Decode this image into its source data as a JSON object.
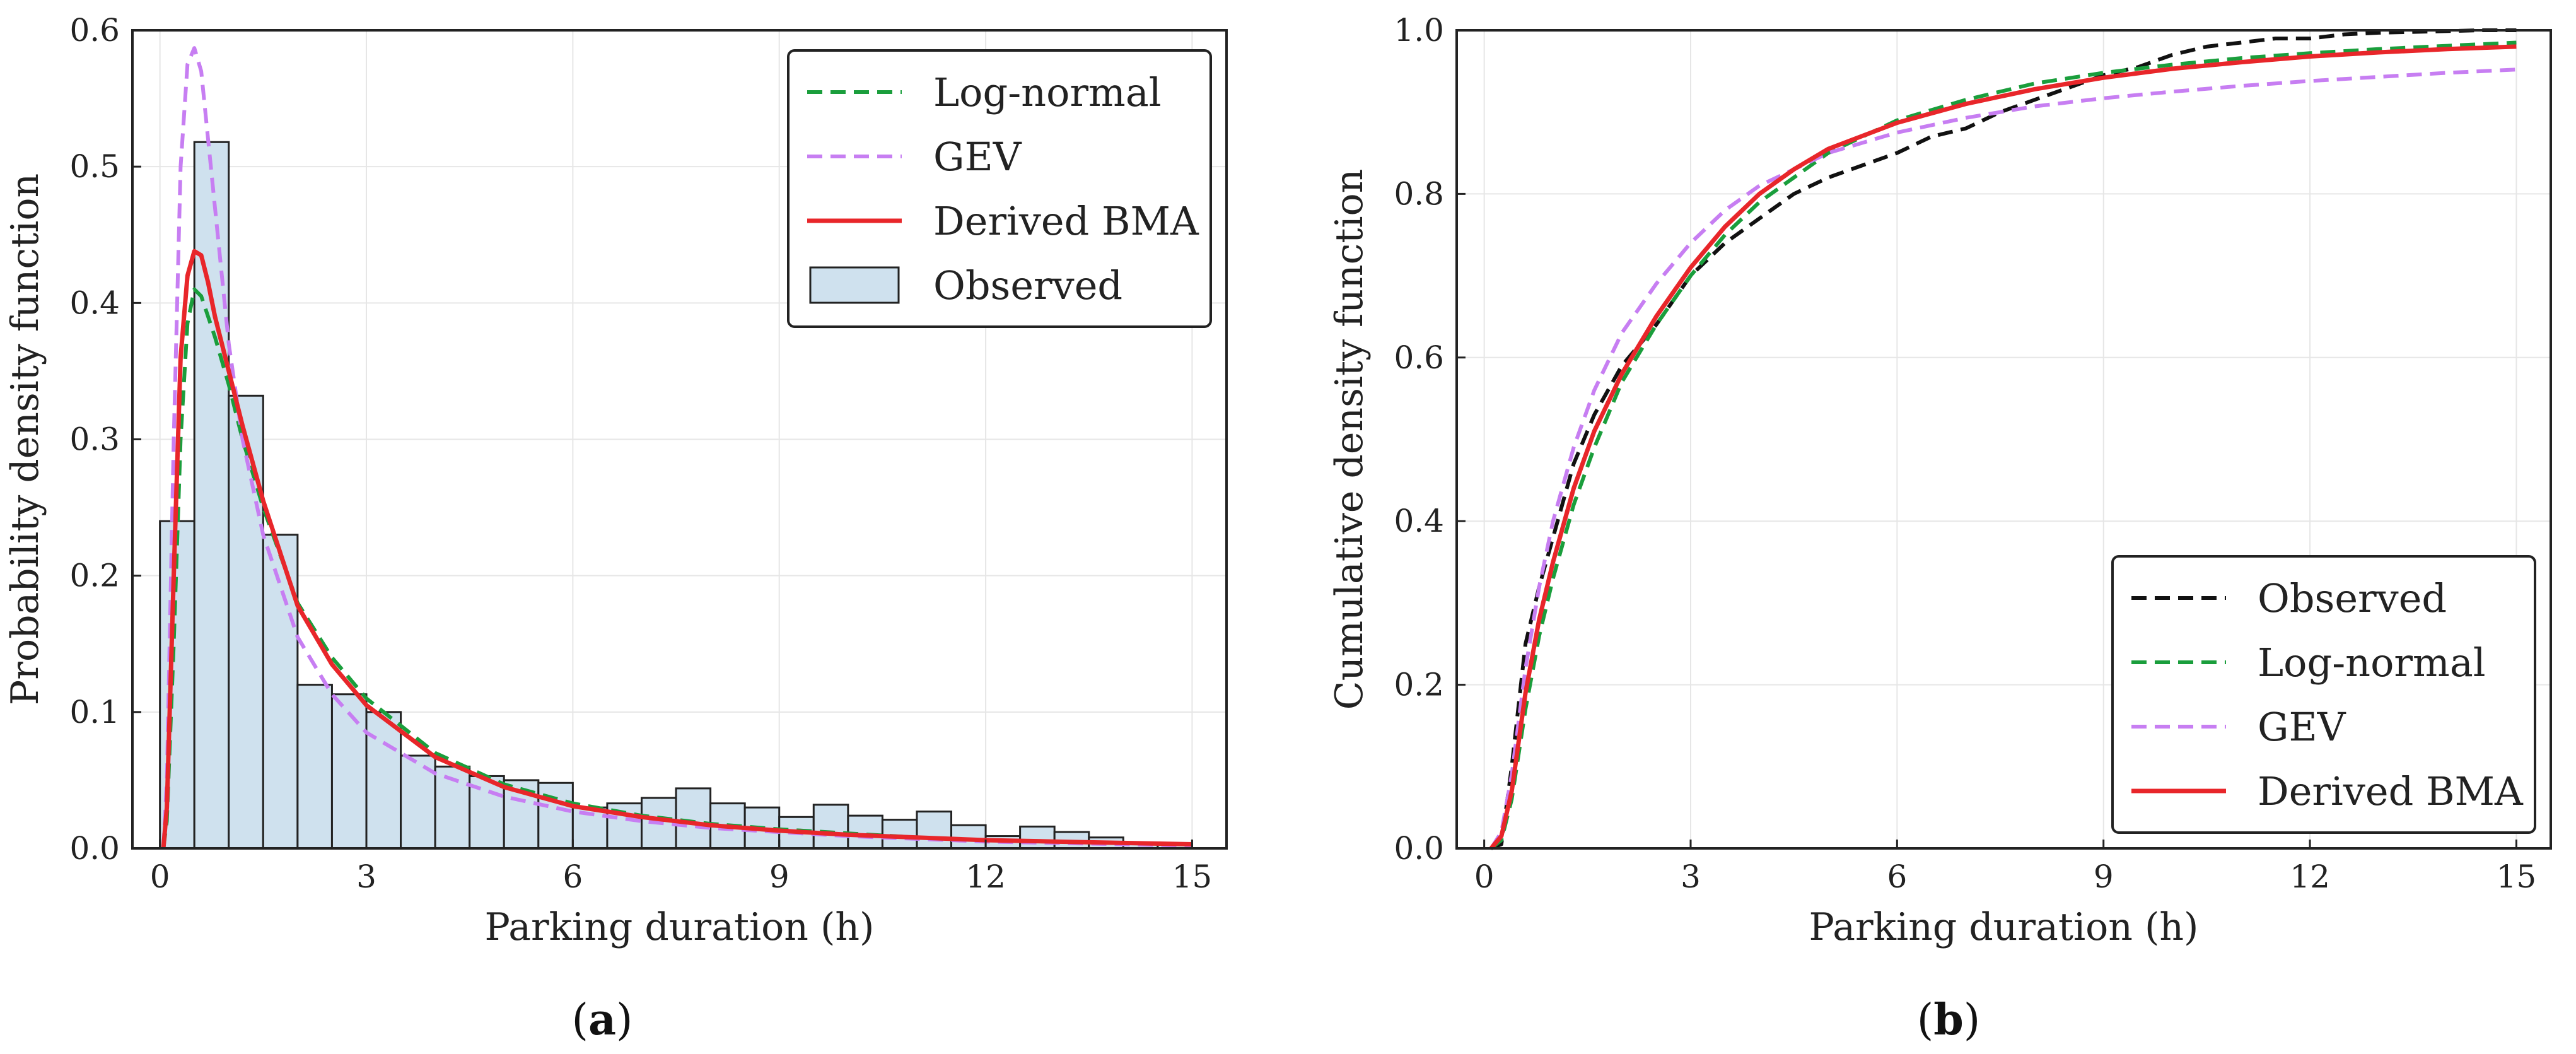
{
  "chart_data": [
    {
      "type": "histogram+line",
      "panel_label": "a",
      "xlabel": "Parking duration (h)",
      "ylabel": "Probability density function",
      "xlim": [
        -0.4,
        15.5
      ],
      "ylim": [
        0,
        0.6
      ],
      "xticks": [
        0,
        3,
        6,
        9,
        12,
        15
      ],
      "yticks": [
        0.0,
        0.1,
        0.2,
        0.3,
        0.4,
        0.5,
        0.6
      ],
      "grid": true,
      "legend_position": "top-right",
      "histogram": {
        "name": "Observed",
        "bin_width": 0.5,
        "bin_start": 0,
        "values": [
          0.24,
          0.518,
          0.332,
          0.23,
          0.12,
          0.113,
          0.1,
          0.068,
          0.06,
          0.053,
          0.05,
          0.048,
          0.03,
          0.033,
          0.037,
          0.044,
          0.033,
          0.03,
          0.023,
          0.032,
          0.024,
          0.021,
          0.027,
          0.017,
          0.009,
          0.016,
          0.012,
          0.008,
          0.004,
          0.003
        ],
        "fill": "#cfe1ee",
        "stroke": "#222222"
      },
      "series": [
        {
          "name": "Log-normal",
          "style": "dashed",
          "color": "#1a9e3c",
          "x": [
            0.05,
            0.1,
            0.2,
            0.3,
            0.4,
            0.5,
            0.6,
            0.7,
            0.8,
            1.0,
            1.2,
            1.5,
            2.0,
            2.5,
            3.0,
            4.0,
            5.0,
            6.0,
            7.0,
            8.0,
            9.0,
            10.0,
            11.0,
            12.0,
            13.0,
            14.0,
            15.0
          ],
          "y": [
            0.0,
            0.02,
            0.15,
            0.3,
            0.385,
            0.41,
            0.405,
            0.39,
            0.375,
            0.34,
            0.3,
            0.25,
            0.18,
            0.14,
            0.11,
            0.07,
            0.047,
            0.033,
            0.024,
            0.018,
            0.014,
            0.011,
            0.008,
            0.006,
            0.005,
            0.004,
            0.003
          ]
        },
        {
          "name": "GEV",
          "style": "dashed",
          "color": "#c77ef2",
          "x": [
            0.05,
            0.1,
            0.2,
            0.3,
            0.4,
            0.5,
            0.6,
            0.7,
            0.8,
            1.0,
            1.2,
            1.5,
            2.0,
            2.5,
            3.0,
            4.0,
            5.0,
            6.0,
            7.0,
            8.0,
            9.0,
            10.0,
            11.0,
            12.0,
            13.0,
            14.0,
            15.0
          ],
          "y": [
            0.0,
            0.05,
            0.3,
            0.5,
            0.575,
            0.587,
            0.57,
            0.52,
            0.47,
            0.37,
            0.3,
            0.23,
            0.155,
            0.113,
            0.085,
            0.055,
            0.038,
            0.027,
            0.02,
            0.015,
            0.012,
            0.009,
            0.007,
            0.005,
            0.004,
            0.003,
            0.002
          ]
        },
        {
          "name": "Derived BMA",
          "style": "solid",
          "color": "#e8262a",
          "x": [
            0.05,
            0.1,
            0.2,
            0.3,
            0.4,
            0.5,
            0.6,
            0.7,
            0.8,
            1.0,
            1.2,
            1.5,
            2.0,
            2.5,
            3.0,
            4.0,
            5.0,
            6.0,
            7.0,
            8.0,
            9.0,
            10.0,
            11.0,
            12.0,
            13.0,
            14.0,
            15.0
          ],
          "y": [
            0.0,
            0.03,
            0.2,
            0.36,
            0.42,
            0.438,
            0.435,
            0.415,
            0.39,
            0.35,
            0.31,
            0.255,
            0.178,
            0.135,
            0.105,
            0.067,
            0.045,
            0.031,
            0.023,
            0.017,
            0.013,
            0.01,
            0.008,
            0.006,
            0.005,
            0.004,
            0.003
          ]
        }
      ],
      "legend_order": [
        "Log-normal",
        "GEV",
        "Derived BMA",
        "Observed"
      ]
    },
    {
      "type": "line",
      "panel_label": "b",
      "xlabel": "Parking duration (h)",
      "ylabel": "Cumulative density function",
      "xlim": [
        -0.4,
        15.5
      ],
      "ylim": [
        0,
        1.0
      ],
      "xticks": [
        0,
        3,
        6,
        9,
        12,
        15
      ],
      "yticks": [
        0.0,
        0.2,
        0.4,
        0.6,
        0.8,
        1.0
      ],
      "grid": true,
      "legend_position": "bottom-right",
      "series": [
        {
          "name": "Observed",
          "style": "dashed",
          "color": "#111111",
          "x": [
            0.1,
            0.25,
            0.4,
            0.6,
            0.8,
            1.0,
            1.3,
            1.6,
            2.0,
            2.5,
            3.0,
            3.5,
            4.0,
            4.5,
            5.0,
            5.5,
            6.0,
            6.5,
            7.0,
            7.5,
            8.0,
            8.5,
            9.0,
            9.5,
            10.0,
            10.5,
            11.0,
            11.5,
            12.0,
            12.5,
            13.0,
            13.5,
            14.0,
            14.5,
            15.0
          ],
          "y": [
            0.0,
            0.005,
            0.1,
            0.25,
            0.32,
            0.38,
            0.47,
            0.53,
            0.59,
            0.64,
            0.7,
            0.74,
            0.77,
            0.8,
            0.82,
            0.835,
            0.85,
            0.87,
            0.88,
            0.9,
            0.915,
            0.93,
            0.945,
            0.955,
            0.97,
            0.98,
            0.985,
            0.99,
            0.99,
            0.995,
            0.997,
            0.998,
            0.999,
            1.0,
            1.0
          ]
        },
        {
          "name": "Log-normal",
          "style": "dashed",
          "color": "#1a9e3c",
          "x": [
            0.1,
            0.25,
            0.4,
            0.6,
            0.8,
            1.0,
            1.3,
            1.6,
            2.0,
            2.5,
            3.0,
            3.5,
            4.0,
            4.5,
            5.0,
            6.0,
            7.0,
            8.0,
            9.0,
            10.0,
            11.0,
            12.0,
            13.0,
            14.0,
            15.0
          ],
          "y": [
            0.0,
            0.01,
            0.06,
            0.17,
            0.26,
            0.33,
            0.42,
            0.49,
            0.57,
            0.64,
            0.7,
            0.75,
            0.79,
            0.82,
            0.85,
            0.89,
            0.915,
            0.935,
            0.948,
            0.958,
            0.966,
            0.972,
            0.977,
            0.981,
            0.985
          ]
        },
        {
          "name": "GEV",
          "style": "dashed",
          "color": "#c77ef2",
          "x": [
            0.1,
            0.25,
            0.4,
            0.6,
            0.8,
            1.0,
            1.3,
            1.6,
            2.0,
            2.5,
            3.0,
            3.5,
            4.0,
            4.5,
            5.0,
            6.0,
            7.0,
            8.0,
            9.0,
            10.0,
            11.0,
            12.0,
            13.0,
            14.0,
            15.0
          ],
          "y": [
            0.0,
            0.02,
            0.09,
            0.22,
            0.32,
            0.4,
            0.49,
            0.56,
            0.63,
            0.69,
            0.74,
            0.78,
            0.81,
            0.83,
            0.85,
            0.875,
            0.893,
            0.907,
            0.917,
            0.925,
            0.932,
            0.938,
            0.943,
            0.948,
            0.952
          ]
        },
        {
          "name": "Derived BMA",
          "style": "solid",
          "color": "#e8262a",
          "x": [
            0.1,
            0.25,
            0.4,
            0.6,
            0.8,
            1.0,
            1.3,
            1.6,
            2.0,
            2.5,
            3.0,
            3.5,
            4.0,
            4.5,
            5.0,
            6.0,
            7.0,
            8.0,
            9.0,
            10.0,
            11.0,
            12.0,
            13.0,
            14.0,
            15.0
          ],
          "y": [
            0.0,
            0.015,
            0.07,
            0.19,
            0.28,
            0.35,
            0.44,
            0.51,
            0.58,
            0.65,
            0.71,
            0.76,
            0.8,
            0.83,
            0.855,
            0.887,
            0.91,
            0.928,
            0.942,
            0.953,
            0.961,
            0.968,
            0.973,
            0.977,
            0.98
          ]
        }
      ],
      "legend_order": [
        "Observed",
        "Log-normal",
        "GEV",
        "Derived BMA"
      ]
    }
  ]
}
